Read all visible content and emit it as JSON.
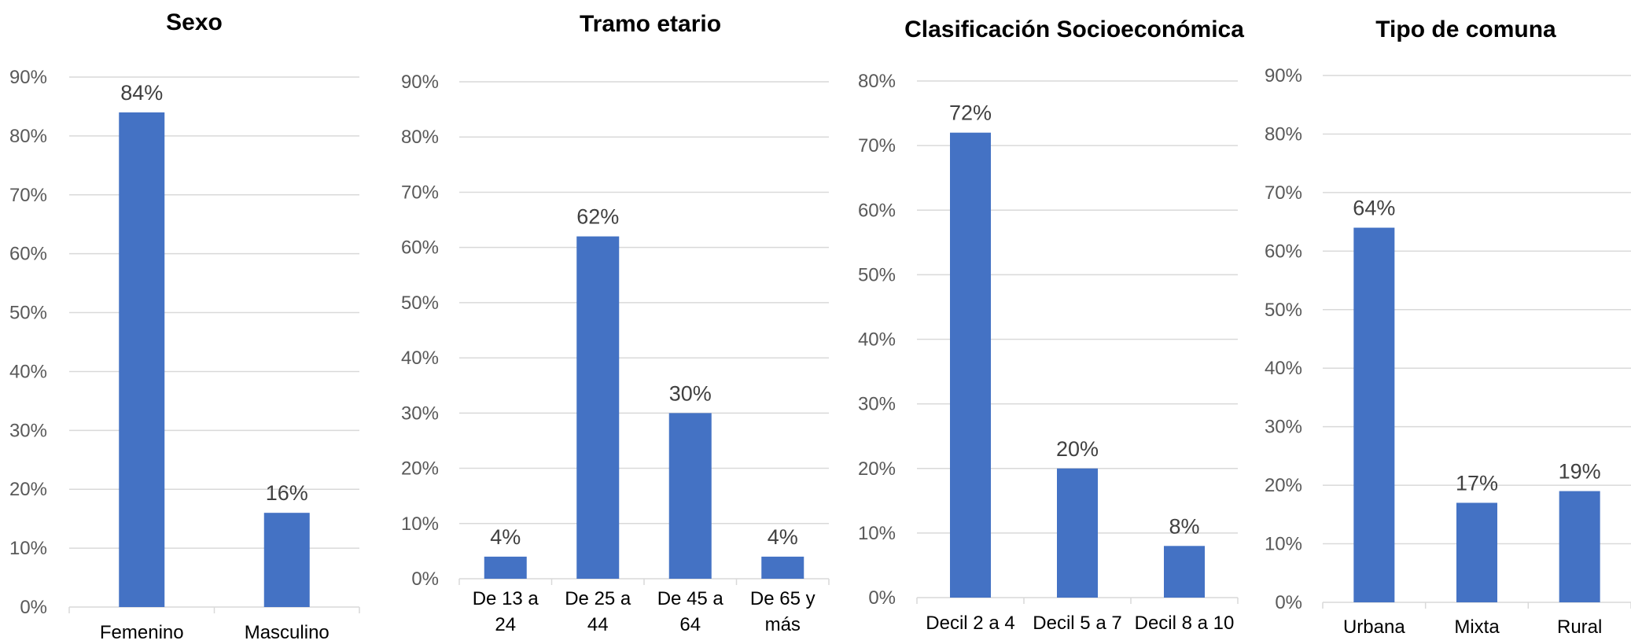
{
  "colors": {
    "bar": "#4472c4",
    "grid": "#d9d9d9",
    "tick_text": "#595959",
    "label_text": "#404040"
  },
  "chart_data": [
    {
      "type": "bar",
      "title": "Sexo",
      "categories": [
        [
          "Femenino"
        ],
        [
          "Masculino"
        ]
      ],
      "values": [
        84,
        16
      ],
      "data_labels": [
        "84%",
        "16%"
      ],
      "ylim": [
        0,
        90
      ],
      "yticks": [
        "0%",
        "10%",
        "20%",
        "30%",
        "40%",
        "50%",
        "60%",
        "70%",
        "80%",
        "90%"
      ],
      "grid": true
    },
    {
      "type": "bar",
      "title": "Tramo etario",
      "categories": [
        [
          "De 13 a",
          "24"
        ],
        [
          "De 25 a",
          "44"
        ],
        [
          "De 45 a",
          "64"
        ],
        [
          "De 65 y",
          "más"
        ]
      ],
      "values": [
        4,
        62,
        30,
        4
      ],
      "data_labels": [
        "4%",
        "62%",
        "30%",
        "4%"
      ],
      "ylim": [
        0,
        90
      ],
      "yticks": [
        "0%",
        "10%",
        "20%",
        "30%",
        "40%",
        "50%",
        "60%",
        "70%",
        "80%",
        "90%"
      ],
      "grid": true
    },
    {
      "type": "bar",
      "title": "Clasificación Socioeconómica",
      "categories": [
        [
          "Decil 2 a 4"
        ],
        [
          "Decil 5 a 7"
        ],
        [
          "Decil 8 a 10"
        ]
      ],
      "values": [
        72,
        20,
        8
      ],
      "data_labels": [
        "72%",
        "20%",
        "8%"
      ],
      "ylim": [
        0,
        80
      ],
      "yticks": [
        "0%",
        "10%",
        "20%",
        "30%",
        "40%",
        "50%",
        "60%",
        "70%",
        "80%"
      ],
      "grid": true
    },
    {
      "type": "bar",
      "title": "Tipo de comuna",
      "categories": [
        [
          "Urbana"
        ],
        [
          "Mixta"
        ],
        [
          "Rural"
        ]
      ],
      "values": [
        64,
        17,
        19
      ],
      "data_labels": [
        "64%",
        "17%",
        "19%"
      ],
      "ylim": [
        0,
        90
      ],
      "yticks": [
        "0%",
        "10%",
        "20%",
        "30%",
        "40%",
        "50%",
        "60%",
        "70%",
        "80%",
        "90%"
      ],
      "grid": true
    }
  ]
}
